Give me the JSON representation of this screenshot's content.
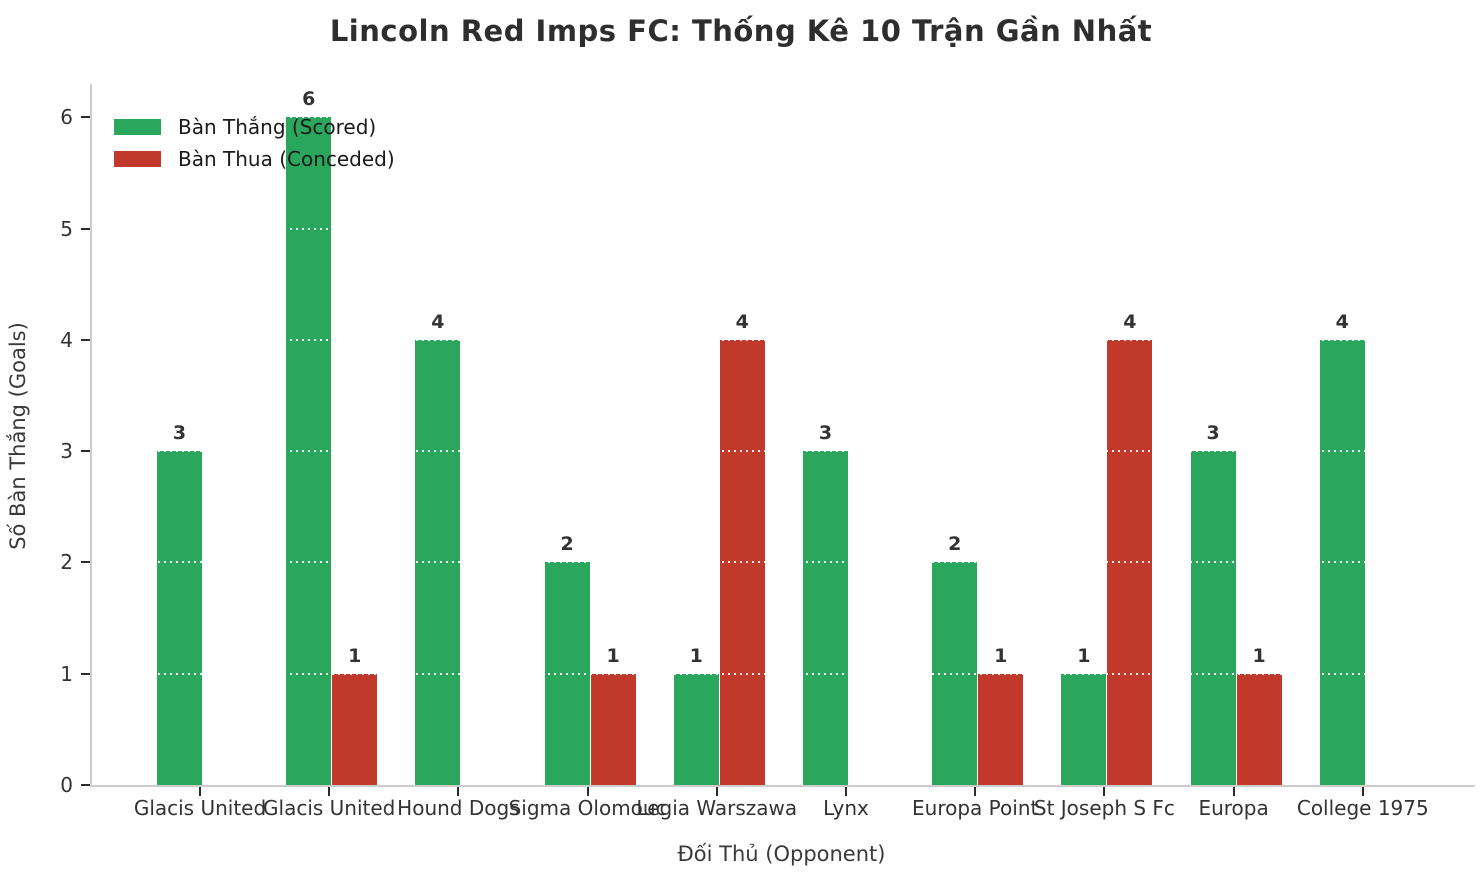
{
  "title": "Lincoln Red Imps FC: Thống Kê 10 Trận Gần Nhất",
  "chart_data": {
    "type": "bar",
    "title": "Lincoln Red Imps FC: Thống Kê 10 Trận Gần Nhất",
    "xlabel": "Đối Thủ (Opponent)",
    "ylabel": "Số Bàn Thắng (Goals)",
    "categories": [
      "Glacis United",
      "Glacis United",
      "Hound Dogs",
      "Sigma Olomouc",
      "Legia Warszawa",
      "Lynx",
      "Europa Point",
      "St Joseph S Fc",
      "Europa",
      "College 1975"
    ],
    "series": [
      {
        "name": "Bàn Thắng (Scored)",
        "color": "#2aa75c",
        "values": [
          3,
          6,
          4,
          2,
          1,
          3,
          2,
          1,
          3,
          4
        ]
      },
      {
        "name": "Bàn Thua (Conceded)",
        "color": "#c0392b",
        "values": [
          0,
          1,
          0,
          1,
          4,
          0,
          1,
          4,
          1,
          0
        ]
      }
    ],
    "yticks": [
      0,
      1,
      2,
      3,
      4,
      5,
      6
    ],
    "ylim": [
      0,
      6.3
    ],
    "grid": "horizontal dotted",
    "legend_position": "upper-left",
    "bar_value_labels": true,
    "zero_value_bars_hidden": true
  }
}
